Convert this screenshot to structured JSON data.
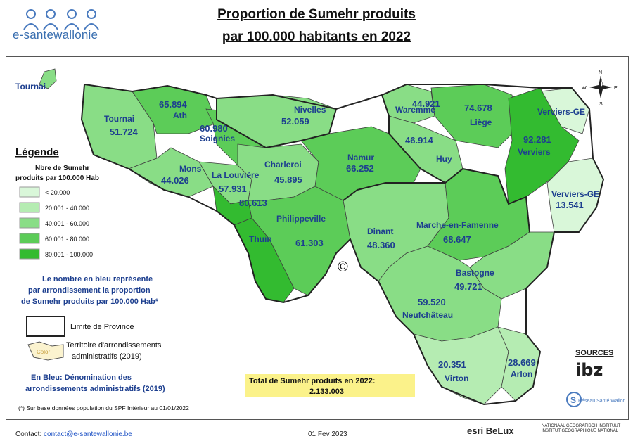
{
  "header": {
    "logo_text": "e-santewallonie",
    "title_line1": "Proportion de Sumehr produits",
    "title_line2": "par 100.000 habitants en 2022"
  },
  "legend": {
    "heading": "Légende",
    "subtitle_line1": "Nbre de Sumehr",
    "subtitle_line2": "produits par 100.000 Hab",
    "classes": [
      {
        "label": "< 20.000",
        "color": "#d9f7d9"
      },
      {
        "label": "20.001 - 40.000",
        "color": "#b5ecb2"
      },
      {
        "label": "40.001 - 60.000",
        "color": "#89dd86"
      },
      {
        "label": "60.001 - 80.000",
        "color": "#5ccc58"
      },
      {
        "label": "80.001 - 100.000",
        "color": "#33bb30"
      }
    ],
    "note_line1": "Le nombre en bleu représente",
    "note_line2": "par arrondissement la proportion",
    "note_line3": "de Sumehr produits par 100.000 Hab*",
    "province_label": "Limite de Province",
    "territory_swatch": "Color",
    "territory_line1": "Territoire d'arrondissements",
    "territory_line2": "administratifs (2019)",
    "blue_line1": "En Bleu: Dénomination des",
    "blue_line2": "arrondissements administratifs (2019)",
    "footnote": "(*) Sur base données population du SPF Intérieur au 01/01/2022"
  },
  "compass": {
    "n": "N",
    "s": "S",
    "e": "E",
    "w": "W"
  },
  "copyright_mark": "©",
  "total": {
    "line1": "Total de Sumehr produits en 2022:",
    "line2": "2.133.003"
  },
  "regions": [
    {
      "name": "Tournai",
      "value": "",
      "color": "#89dd86"
    },
    {
      "name": "Tournai",
      "value": "51.724",
      "color": "#89dd86"
    },
    {
      "name": "Ath",
      "value": "65.894",
      "color": "#5ccc58"
    },
    {
      "name": "Soignies",
      "value": "60.980",
      "color": "#5ccc58"
    },
    {
      "name": "Nivelles",
      "value": "52.059",
      "color": "#89dd86"
    },
    {
      "name": "Waremme",
      "value": "44.921",
      "color": "#89dd86"
    },
    {
      "name": "Liège",
      "value": "74.678",
      "color": "#5ccc58"
    },
    {
      "name": "Verviers-GE",
      "value": "",
      "color": "#d9f7d9"
    },
    {
      "name": "Verviers",
      "value": "92.281",
      "color": "#33bb30"
    },
    {
      "name": "Verviers-GE",
      "value": "13.541",
      "color": "#d9f7d9"
    },
    {
      "name": "Mons",
      "value": "44.026",
      "color": "#89dd86"
    },
    {
      "name": "La Louvière",
      "value": "57.931",
      "color": "#89dd86"
    },
    {
      "name": "Charleroi",
      "value": "45.895",
      "color": "#89dd86"
    },
    {
      "name": "Namur",
      "value": "66.252",
      "color": "#5ccc58"
    },
    {
      "name": "Huy",
      "value": "46.914",
      "color": "#89dd86"
    },
    {
      "name": "",
      "value": "80.613",
      "color": "#33bb30"
    },
    {
      "name": "Philippeville",
      "value": "61.303",
      "color": "#5ccc58"
    },
    {
      "name": "Dinant",
      "value": "48.360",
      "color": "#89dd86"
    },
    {
      "name": "Marche-en-Famenne",
      "value": "68.647",
      "color": "#5ccc58"
    },
    {
      "name": "Thuin",
      "value": "",
      "color": "#33bb30"
    },
    {
      "name": "Bastogne",
      "value": "49.721",
      "color": "#89dd86"
    },
    {
      "name": "Neufchâteau",
      "value": "59.520",
      "color": "#89dd86"
    },
    {
      "name": "Virton",
      "value": "20.351",
      "color": "#b5ecb2"
    },
    {
      "name": "Arlon",
      "value": "28.669",
      "color": "#b5ecb2"
    }
  ],
  "sources": {
    "heading": "SOURCES",
    "ibz": "ibz",
    "rsw": "Réseau Santé Wallon"
  },
  "footer": {
    "contact_label": "Contact:",
    "contact_email": "contact@e-santewallonie.be",
    "date": "01 Fev 2023",
    "esri": "esri BeLux",
    "ngi_line1": "NATIONAAL GEOGRAFISCH INSTITUUT",
    "ngi_line2": "INSTITUT GÉOGRAPHIQUE NATIONAL"
  }
}
